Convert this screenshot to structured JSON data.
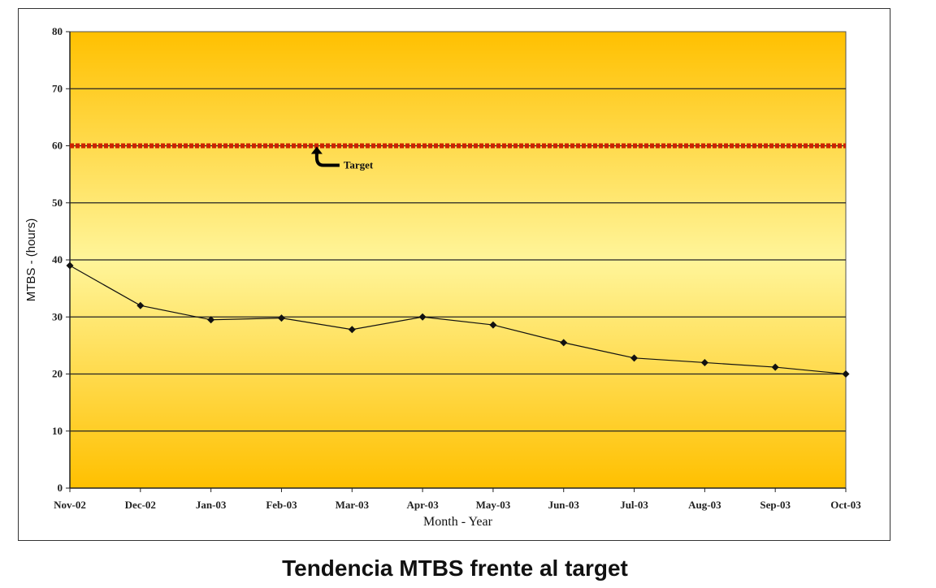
{
  "caption": "Tendencia MTBS frente al target",
  "chart_data": {
    "type": "line",
    "title": "",
    "xlabel": "Month - Year",
    "ylabel": "MTBS - (hours)",
    "ylim": [
      0,
      80
    ],
    "yticks": [
      0,
      10,
      20,
      30,
      40,
      50,
      60,
      70,
      80
    ],
    "categories": [
      "Nov-02",
      "Dec-02",
      "Jan-03",
      "Feb-03",
      "Mar-03",
      "Apr-03",
      "May-03",
      "Jun-03",
      "Jul-03",
      "Aug-03",
      "Sep-03",
      "Oct-03"
    ],
    "series": [
      {
        "values": [
          39,
          32,
          29.5,
          29.8,
          27.8,
          30,
          28.6,
          25.5,
          22.8,
          22,
          21.2,
          20
        ],
        "color": "#111111"
      }
    ],
    "target": {
      "value": 60,
      "label": "Target",
      "color": "#cc2200"
    },
    "grid": true,
    "background_colors": [
      "#ffc000",
      "#fff59a"
    ]
  }
}
